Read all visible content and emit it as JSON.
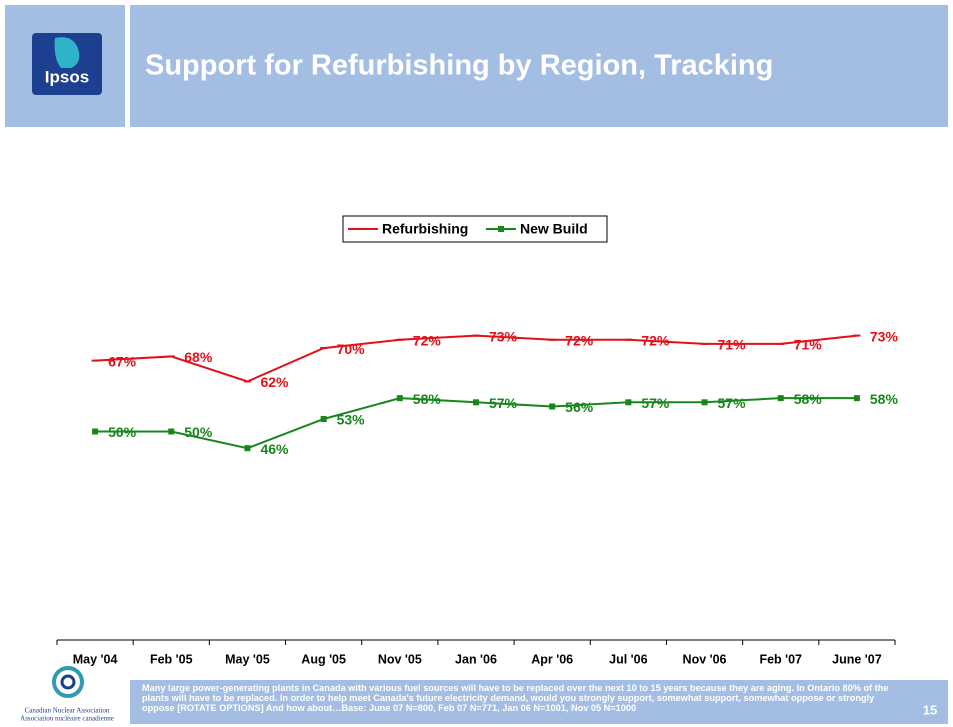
{
  "header": {
    "logo": "Ipsos",
    "title": "Support for Refurbishing by Region, Tracking"
  },
  "chart_data": {
    "type": "line",
    "categories": [
      "May '04",
      "Feb '05",
      "May '05",
      "Aug '05",
      "Nov '05",
      "Jan '06",
      "Apr '06",
      "Jul '06",
      "Nov '06",
      "Feb '07",
      "June '07"
    ],
    "series": [
      {
        "name": "Refurbishing",
        "color": "#e3101a",
        "marker": "dash",
        "values": [
          67,
          68,
          62,
          70,
          72,
          73,
          72,
          72,
          71,
          71,
          73
        ],
        "value_labels": [
          "67%",
          "68%",
          "62%",
          "70%",
          "72%",
          "73%",
          "72%",
          "72%",
          "71%",
          "71%",
          "73%"
        ]
      },
      {
        "name": "New Build",
        "color": "#17871c",
        "marker": "square",
        "values": [
          50,
          50,
          46,
          53,
          58,
          57,
          56,
          57,
          57,
          58,
          58
        ],
        "value_labels": [
          "50%",
          "50%",
          "46%",
          "53%",
          "58%",
          "57%",
          "56%",
          "57%",
          "57%",
          "58%",
          "58%"
        ]
      }
    ],
    "ylim": [
      0,
      100
    ],
    "legend": "top"
  },
  "footer": {
    "org_en": "Canadian Nuclear Association",
    "org_fr": "Association nucléaire canadienne",
    "note": "Many large power-generating plants in Canada with various fuel sources will have to be replaced over the next 10 to 15 years because they are aging. In Ontario 80% of the plants will have to be replaced. In order to help meet Canada's future electricity demand, would you strongly support, somewhat support, somewhat oppose or strongly oppose [ROTATE OPTIONS] And how about…Base: June 07 N=800, Feb 07 N=771, Jan 06 N=1001, Nov 05 N=1000",
    "page": 15
  }
}
